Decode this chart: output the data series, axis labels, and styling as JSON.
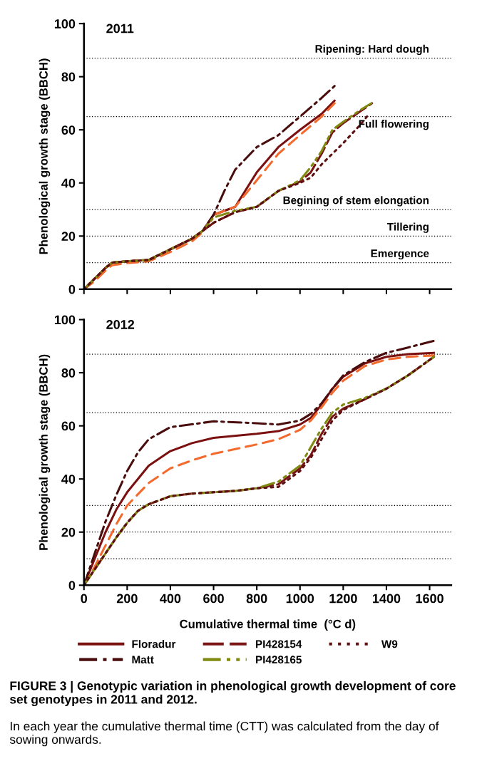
{
  "chart_data": [
    {
      "type": "line",
      "title": "2011",
      "ylabel": "Phenological growth stage (BBCH)",
      "xlim": [
        0,
        1700
      ],
      "xticks": [
        {
          "value": 0,
          "label": null
        },
        {
          "value": 200,
          "label": null
        },
        {
          "value": 400,
          "label": null
        },
        {
          "value": 600,
          "label": null
        },
        {
          "value": 800,
          "label": null
        },
        {
          "value": 1000,
          "label": null
        },
        {
          "value": 1200,
          "label": null
        },
        {
          "value": 1400,
          "label": null
        },
        {
          "value": 1600,
          "label": null
        }
      ],
      "ylim": [
        0,
        100
      ],
      "yticks": [
        0,
        20,
        40,
        60,
        80,
        100
      ],
      "tick_labels": "y",
      "grid": false,
      "marker": "none",
      "legend": "bottom",
      "ref_lines": [
        {
          "axis": "y",
          "value": 10,
          "color": "#000000",
          "line_style": "dotted",
          "label": "Emergence"
        },
        {
          "axis": "y",
          "value": 20,
          "color": "#000000",
          "line_style": "dotted",
          "label": "Tillering"
        },
        {
          "axis": "y",
          "value": 30,
          "color": "#000000",
          "line_style": "dotted",
          "label": "Begining of stem elongation"
        },
        {
          "axis": "y",
          "value": 65,
          "color": "#000000",
          "line_style": "dotted",
          "label": "Full flowering"
        },
        {
          "axis": "y",
          "value": 87,
          "color": "#000000",
          "line_style": "dotted",
          "label": "Ripening: Hard dough"
        }
      ],
      "series": [
        {
          "name": "Floradur",
          "color": "#7a1010",
          "line_style": "solid",
          "x": [
            0,
            50,
            100,
            130,
            200,
            300,
            400,
            500,
            550,
            600,
            700,
            800,
            900,
            1000,
            1100,
            1160
          ],
          "values": [
            0,
            4,
            8,
            10,
            10.5,
            11,
            15,
            19,
            22,
            28,
            31,
            44,
            53.5,
            60,
            66,
            71
          ]
        },
        {
          "color": "#f26a2e",
          "line_style": "dashed",
          "x": [
            0,
            50,
            100,
            130,
            200,
            300,
            400,
            500,
            550,
            600,
            700,
            800,
            900,
            1000,
            1100,
            1160
          ],
          "values": [
            0,
            3,
            7,
            9,
            9.8,
            10.5,
            14,
            18,
            21.5,
            28,
            31,
            41,
            51,
            58,
            65,
            70
          ]
        },
        {
          "name": "Matt",
          "color": "#4a0d0d",
          "line_style": "dashdot",
          "x": [
            0,
            50,
            100,
            130,
            200,
            300,
            400,
            500,
            550,
            600,
            650,
            700,
            800,
            900,
            1000,
            1100,
            1160
          ],
          "values": [
            0,
            4,
            8,
            10,
            10.5,
            11,
            15,
            19,
            22,
            28,
            37,
            45,
            53.5,
            58,
            65,
            72,
            76.5
          ]
        },
        {
          "name": "PI428154",
          "color": "#7a1515",
          "line_style": "longdash",
          "x": [
            0,
            50,
            100,
            130,
            200,
            300,
            400,
            500,
            550,
            600,
            700,
            800,
            900,
            1000,
            1050,
            1100,
            1150,
            1200,
            1280,
            1333
          ],
          "values": [
            0,
            4,
            8,
            10,
            10.5,
            11,
            15,
            19,
            22,
            25,
            29,
            31,
            37,
            40.5,
            44,
            51,
            59,
            62.5,
            67,
            70
          ]
        },
        {
          "name": "PI428165",
          "color": "#808a10",
          "line_style": "dashdotdot",
          "x": [
            0,
            50,
            100,
            130,
            200,
            300,
            400,
            500,
            550,
            600,
            700,
            800,
            900,
            1000,
            1050,
            1100,
            1150,
            1200,
            1280,
            1330
          ],
          "values": [
            0,
            4,
            8,
            10,
            10.5,
            11,
            15,
            19,
            22,
            27,
            29.5,
            31,
            37,
            41,
            46,
            52,
            60,
            63,
            67.5,
            70
          ]
        },
        {
          "name": "W9",
          "color": "#5c1010",
          "line_style": "dotted",
          "x": [
            0,
            50,
            100,
            130,
            200,
            300,
            400,
            500,
            550,
            600,
            700,
            800,
            900,
            1000,
            1050,
            1100,
            1200,
            1280,
            1320
          ],
          "values": [
            0,
            4,
            8,
            10,
            10.5,
            11,
            15,
            19,
            22,
            25,
            29,
            31,
            37,
            40,
            42,
            47,
            55,
            62,
            66
          ]
        }
      ]
    },
    {
      "type": "line",
      "title": "2012",
      "ylabel": "Phenological growth stage (BBCH)",
      "xlabel": "Cumulative thermal time  (°C d)",
      "xlim": [
        0,
        1700
      ],
      "xticks": [
        0,
        200,
        400,
        600,
        800,
        1000,
        1200,
        1400,
        1600
      ],
      "ylim": [
        0,
        100
      ],
      "yticks": [
        0,
        20,
        40,
        60,
        80,
        100
      ],
      "grid": false,
      "marker": "none",
      "legend": "bottom",
      "ref_lines": [
        {
          "axis": "y",
          "value": 10,
          "color": "#000000",
          "line_style": "dotted"
        },
        {
          "axis": "y",
          "value": 20,
          "color": "#000000",
          "line_style": "dotted"
        },
        {
          "axis": "y",
          "value": 30,
          "color": "#000000",
          "line_style": "dotted"
        },
        {
          "axis": "y",
          "value": 65,
          "color": "#000000",
          "line_style": "dotted"
        },
        {
          "axis": "y",
          "value": 87,
          "color": "#000000",
          "line_style": "dotted"
        }
      ],
      "annotations": [
        "FIGURE 3 | Genotypic variation in phenological growth development of core set genotypes in 2011 and 2012.",
        "In each year the cumulative thermal time (CTT) was calculated from the day of sowing onwards."
      ],
      "series": [
        {
          "name": "Floradur",
          "color": "#7a1010",
          "line_style": "solid",
          "x": [
            0,
            50,
            100,
            150,
            200,
            300,
            400,
            500,
            600,
            800,
            900,
            1000,
            1050,
            1100,
            1150,
            1200,
            1300,
            1400,
            1500,
            1620
          ],
          "values": [
            0,
            10,
            20,
            28.5,
            35,
            45,
            50.5,
            53.5,
            55.5,
            57,
            58,
            60.5,
            63,
            68,
            74,
            78.5,
            83.5,
            86,
            87,
            87.5
          ]
        },
        {
          "color": "#f26a2e",
          "line_style": "dashed",
          "x": [
            0,
            50,
            100,
            150,
            200,
            300,
            400,
            500,
            600,
            800,
            900,
            1000,
            1050,
            1100,
            1150,
            1200,
            1300,
            1400,
            1500,
            1620
          ],
          "values": [
            0,
            7,
            15,
            23,
            30,
            38.5,
            44,
            47,
            49.5,
            53,
            55,
            58.5,
            62,
            67,
            72.5,
            77,
            82.5,
            85,
            86,
            86.5
          ]
        },
        {
          "name": "Matt",
          "color": "#4a0d0d",
          "line_style": "dashdot",
          "x": [
            0,
            50,
            100,
            150,
            200,
            250,
            300,
            400,
            600,
            800,
            900,
            1000,
            1050,
            1100,
            1150,
            1200,
            1300,
            1400,
            1500,
            1620
          ],
          "values": [
            0,
            12,
            24,
            34,
            43,
            50,
            55,
            59.5,
            61.7,
            61,
            60.5,
            62,
            64.5,
            68.5,
            74,
            79,
            84,
            87.5,
            89.5,
            92
          ]
        },
        {
          "name": "PI428154",
          "color": "#7a1515",
          "line_style": "longdash",
          "x": [
            0,
            50,
            100,
            150,
            200,
            250,
            300,
            400,
            500,
            600,
            700,
            800,
            900,
            1000,
            1050,
            1100,
            1150,
            1200,
            1300,
            1400,
            1500,
            1620
          ],
          "values": [
            0,
            6,
            12,
            18,
            23.5,
            28,
            30.5,
            33.5,
            34.5,
            35,
            35.5,
            36.5,
            38,
            44,
            49,
            57,
            63.5,
            66.5,
            70,
            74,
            79,
            86
          ]
        },
        {
          "name": "PI428165",
          "color": "#808a10",
          "line_style": "dashdotdot",
          "x": [
            0,
            50,
            100,
            150,
            200,
            250,
            300,
            400,
            500,
            600,
            700,
            800,
            900,
            1000,
            1050,
            1100,
            1150,
            1200,
            1300,
            1400,
            1500,
            1620
          ],
          "values": [
            0,
            6,
            12,
            18,
            23.5,
            28,
            30.5,
            33.5,
            34.5,
            35,
            35.5,
            36.5,
            39,
            45,
            52,
            59,
            65,
            68,
            70.5,
            74,
            79,
            86
          ]
        },
        {
          "name": "W9",
          "color": "#5c1010",
          "line_style": "dotted",
          "x": [
            0,
            50,
            100,
            150,
            200,
            250,
            300,
            400,
            500,
            600,
            700,
            800,
            900,
            1000,
            1050,
            1100,
            1150,
            1200,
            1300,
            1400,
            1500,
            1620
          ],
          "values": [
            0,
            6,
            12,
            18,
            23.5,
            28,
            30.5,
            33.5,
            34.5,
            35,
            35.5,
            36.5,
            37,
            43,
            48,
            55,
            62,
            66,
            70,
            74,
            79,
            86
          ]
        }
      ]
    }
  ]
}
